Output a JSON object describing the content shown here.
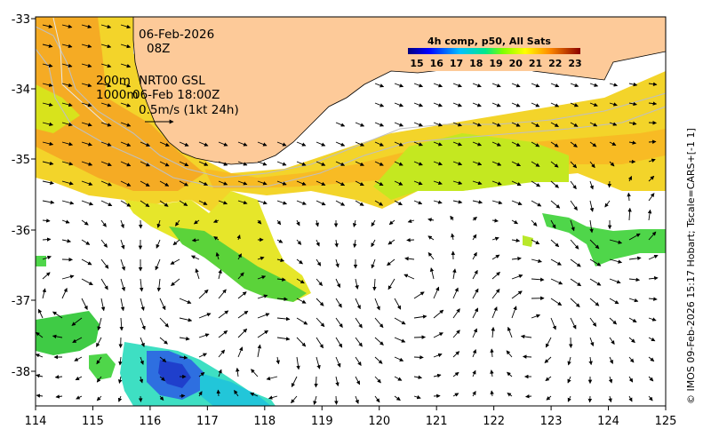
{
  "map": {
    "date": "06-Feb-2026",
    "time": "08Z",
    "contour_labels": [
      "200m",
      "1000m"
    ],
    "model_run": "NRT00 GSL",
    "model_time": "06-Feb 18:00Z",
    "velocity_scale": "0.5m/s (1kt 24h)",
    "legend": {
      "title": "4h comp, p50, All Sats",
      "ticks": [
        "15",
        "16",
        "17",
        "18",
        "19",
        "20",
        "21",
        "22",
        "23"
      ]
    },
    "credit": "© IMOS 09-Feb-2026 15:17 Hobart; Tscale=CARS+[-1 1]",
    "lon_ticks": [
      "114",
      "115",
      "116",
      "117",
      "118",
      "119",
      "120",
      "121",
      "122",
      "123",
      "124",
      "125"
    ],
    "lat_ticks": [
      "-33",
      "-34",
      "-35",
      "-36",
      "-37",
      "-38"
    ],
    "colors": {
      "land": "#FDCA99",
      "coast": "#000000",
      "bathy": "#BFBFBF"
    }
  }
}
